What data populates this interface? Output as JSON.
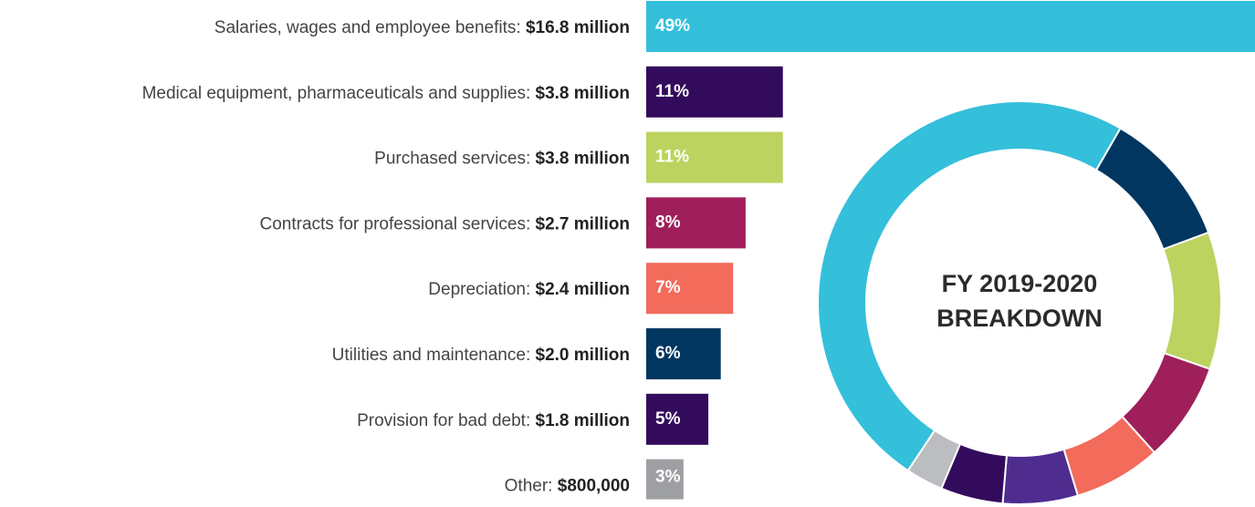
{
  "chart_data": [
    {
      "type": "hbar",
      "categories": [
        "Salaries, wages and employee benefits:",
        "Medical equipment, pharmaceuticals and supplies:",
        "Purchased services:",
        "Contracts for professional services:",
        "Depreciation:",
        "Utilities and maintenance:",
        "Provision for bad debt:",
        "Other:"
      ],
      "amounts": [
        16.8,
        3.8,
        3.8,
        2.7,
        2.4,
        2.0,
        1.8,
        0.8
      ],
      "amount_labels": [
        "$16.8 million",
        "$3.8 million",
        "$3.8 million",
        "$2.7 million",
        "$2.4 million",
        "$2.0 million",
        "$1.8 million",
        "$800,000"
      ],
      "values": [
        49,
        11,
        11,
        8,
        7,
        6,
        5,
        3
      ],
      "value_labels": [
        "49%",
        "11%",
        "11%",
        "8%",
        "7%",
        "6%",
        "5%",
        "3%"
      ],
      "colors": [
        "#34bfdb",
        "#330b5c",
        "#bcd35f",
        "#9e1f5a",
        "#f26b5b",
        "#003660",
        "#330b5c",
        "#9d9fa2"
      ],
      "xlim": [
        0,
        49
      ]
    },
    {
      "type": "donut",
      "title_lines": [
        "FY 2019-2020",
        "BREAKDOWN"
      ],
      "values": [
        11,
        11,
        8,
        7,
        6,
        5,
        3,
        49
      ],
      "colors": [
        "#003660",
        "#bcd35f",
        "#9e1f5a",
        "#f26b5b",
        "#4f2d8f",
        "#330b5c",
        "#bcbdc0",
        "#34bfdb"
      ]
    }
  ]
}
